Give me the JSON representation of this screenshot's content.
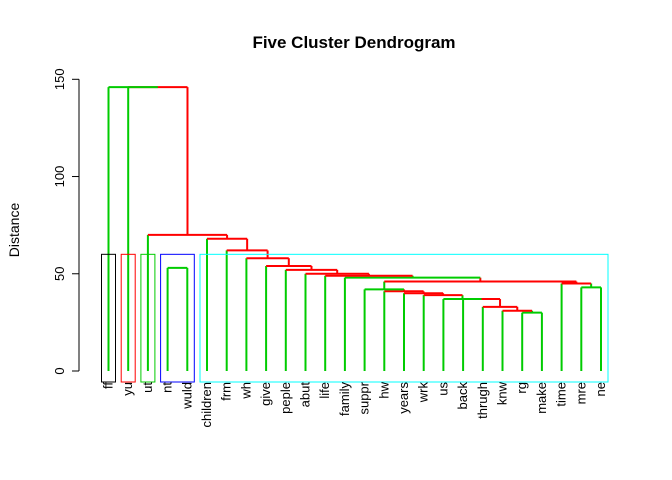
{
  "chart_data": {
    "type": "dendrogram",
    "title": "Five Cluster Dendrogram",
    "ylabel": "Distance",
    "ylim": [
      0,
      150
    ],
    "yticks": [
      0,
      50,
      100,
      150
    ],
    "leaves": [
      "ff",
      "yu",
      "ut",
      "nt",
      "wuld",
      "children",
      "frm",
      "wh",
      "give",
      "peple",
      "abut",
      "life",
      "family",
      "suppr",
      "hw",
      "years",
      "wrk",
      "us",
      "back",
      "thrugh",
      "knw",
      "rg",
      "make",
      "time",
      "mre",
      "ne"
    ],
    "merges": [
      {
        "id": 1,
        "left": 22,
        "right": 21,
        "height": 30,
        "color": "#00cc00"
      },
      {
        "id": 2,
        "left": 20,
        "right": 1,
        "height": 31,
        "color": "#ff0000"
      },
      {
        "id": 3,
        "left": 19,
        "right": 2,
        "height": 33,
        "color": "#ff0000"
      },
      {
        "id": 4,
        "left": 18,
        "right": 3,
        "height": 37,
        "color": "#ff0000"
      },
      {
        "id": 5,
        "left": 17,
        "right": 4,
        "height": 37,
        "color": "#00cc00"
      },
      {
        "id": 6,
        "left": 16,
        "right": 5,
        "height": 39,
        "color": "#ff0000"
      },
      {
        "id": 7,
        "left": 15,
        "right": 6,
        "height": 40,
        "color": "#ff0000"
      },
      {
        "id": 8,
        "left": 14,
        "right": 7,
        "height": 41,
        "color": "#ff0000"
      },
      {
        "id": 9,
        "left": 13,
        "right": 8,
        "height": 42,
        "color": "#00cc00"
      },
      {
        "id": 10,
        "left": 24,
        "right": 25,
        "height": 43,
        "color": "#00cc00"
      },
      {
        "id": 11,
        "left": 23,
        "right": 10,
        "height": 45,
        "color": "#ff0000"
      },
      {
        "id": 12,
        "left": 9,
        "right": 11,
        "height": 46,
        "color": "#ff0000"
      },
      {
        "id": 13,
        "left": 12,
        "right": 12,
        "height": 48,
        "color": "#00cc00"
      },
      {
        "id": 14,
        "left": 11,
        "right": 13,
        "height": 49,
        "color": "#ff0000"
      },
      {
        "id": 15,
        "left": 10,
        "right": 14,
        "height": 50,
        "color": "#ff0000"
      },
      {
        "id": 16,
        "left": 9,
        "right": 15,
        "height": 52,
        "color": "#ff0000"
      },
      {
        "id": 17,
        "left": 3,
        "right": 4,
        "height": 53,
        "color": "#00cc00"
      },
      {
        "id": 18,
        "left": 8,
        "right": 16,
        "height": 54,
        "color": "#ff0000"
      },
      {
        "id": 19,
        "left": 7,
        "right": 18,
        "height": 58,
        "color": "#ff0000"
      },
      {
        "id": 20,
        "left": 6,
        "right": 19,
        "height": 62,
        "color": "#ff0000"
      },
      {
        "id": 21,
        "left": 5,
        "right": 20,
        "height": 68,
        "color": "#ff0000"
      },
      {
        "id": 22,
        "left": 2,
        "right": 21,
        "height": 70,
        "color": "#ff0000"
      },
      {
        "id": 23,
        "left": 1,
        "right": 22,
        "height": 146,
        "color": "#ff0000"
      }
    ],
    "clusters": [
      {
        "from": 0,
        "to": 0,
        "color": "#000000"
      },
      {
        "from": 1,
        "to": 1,
        "color": "#ff0000"
      },
      {
        "from": 2,
        "to": 2,
        "color": "#00cc00"
      },
      {
        "from": 3,
        "to": 4,
        "color": "#0000ff"
      },
      {
        "from": 5,
        "to": 25,
        "color": "#00ffff"
      }
    ],
    "cluster_box_top": 60
  }
}
